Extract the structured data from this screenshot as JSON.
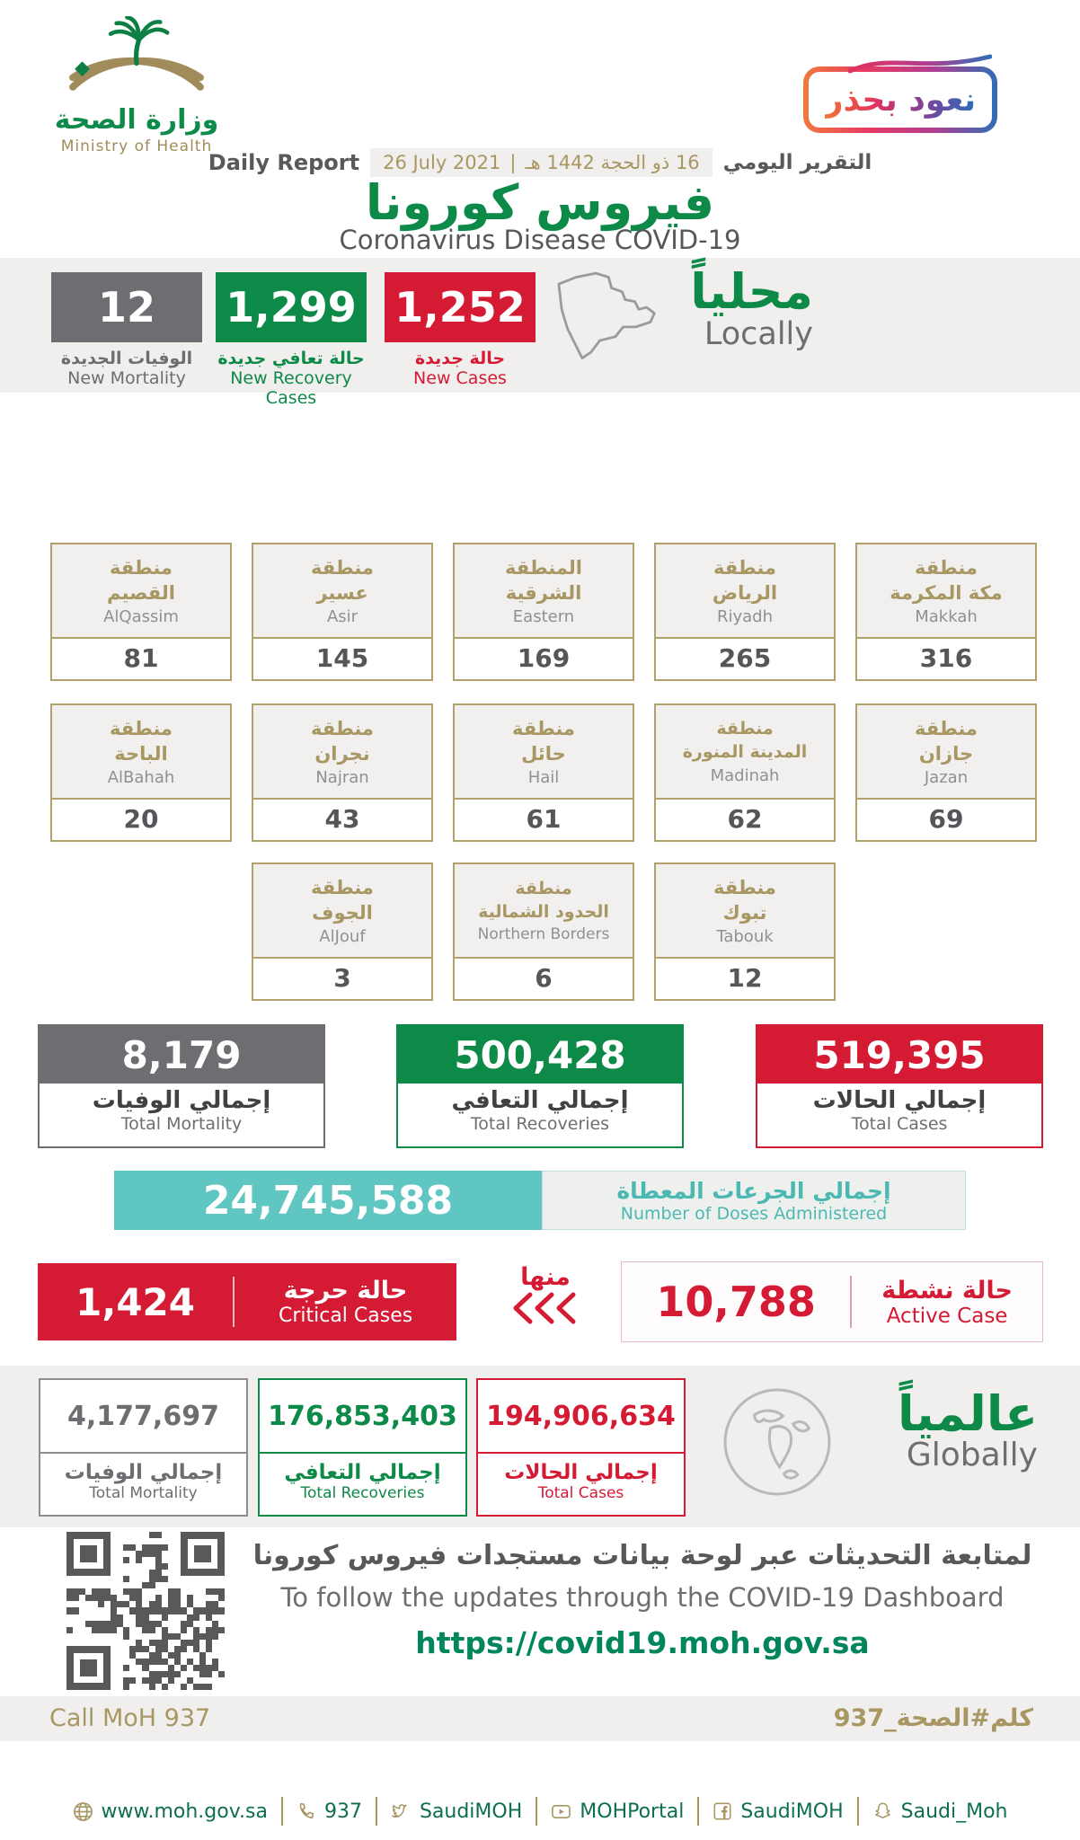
{
  "colors": {
    "green": "#0d8a48",
    "red": "#d51a34",
    "gray": "#6d6e71",
    "teal": "#5fc6c1",
    "gold": "#a89763",
    "band": "#f0efed",
    "dark": "#58595b",
    "url_green": "#00855c"
  },
  "header": {
    "logo": {
      "title_ar": "وزارة الصحة",
      "title_en": "Ministry of Health"
    },
    "badge_text": "نعود بحذر",
    "report": {
      "label_en": "Daily Report",
      "date_gregorian": "26 July 2021",
      "separator": "|",
      "date_hijri": "16 ذو الحجة 1442 هـ",
      "label_ar": "التقرير اليومي"
    },
    "title_ar": "فيروس كورونا",
    "title_en": "Coronavirus Disease COVID-19"
  },
  "locally": {
    "title_ar": "محلياً",
    "title_en": "Locally",
    "stats": [
      {
        "value": "12",
        "label_ar": "الوفيات الجديدة",
        "label_en": "New Mortality",
        "color": "#6d6e71"
      },
      {
        "value": "1,299",
        "label_ar": "حالة تعافي جديدة",
        "label_en": "New Recovery Cases",
        "color": "#0d8a48"
      },
      {
        "value": "1,252",
        "label_ar": "حالة جديدة",
        "label_en": "New Cases",
        "color": "#d51a34"
      }
    ]
  },
  "regions": {
    "cards": [
      {
        "ar1": "منطقة",
        "ar2": "القصيم",
        "en": "AlQassim",
        "value": "81"
      },
      {
        "ar1": "منطقة",
        "ar2": "عسير",
        "en": "Asir",
        "value": "145"
      },
      {
        "ar1": "المنطقة",
        "ar2": "الشرقية",
        "en": "Eastern",
        "value": "169"
      },
      {
        "ar1": "منطقة",
        "ar2": "الرياض",
        "en": "Riyadh",
        "value": "265"
      },
      {
        "ar1": "منطقة",
        "ar2": "مكة المكرمة",
        "en": "Makkah",
        "value": "316"
      },
      {
        "ar1": "منطقة",
        "ar2": "الباحة",
        "en": "AlBahah",
        "value": "20"
      },
      {
        "ar1": "منطقة",
        "ar2": "نجران",
        "en": "Najran",
        "value": "43"
      },
      {
        "ar1": "منطقة",
        "ar2": "حائل",
        "en": "Hail",
        "value": "61"
      },
      {
        "ar1": "منطقة",
        "ar2": "المدينة المنورة",
        "en": "Madinah",
        "value": "62"
      },
      {
        "ar1": "منطقة",
        "ar2": "جازان",
        "en": "Jazan",
        "value": "69"
      },
      {
        "ar1": "منطقة",
        "ar2": "الجوف",
        "en": "AlJouf",
        "value": "3"
      },
      {
        "ar1": "منطقة",
        "ar2": "الحدود الشمالية",
        "en": "Northern Borders",
        "value": "6"
      },
      {
        "ar1": "منطقة",
        "ar2": "تبوك",
        "en": "Tabouk",
        "value": "12"
      }
    ]
  },
  "totals": [
    {
      "value": "8,179",
      "label_ar": "إجمالي الوفيات",
      "label_en": "Total Mortality",
      "color": "#6d6e71"
    },
    {
      "value": "500,428",
      "label_ar": "إجمالي التعافي",
      "label_en": "Total Recoveries",
      "color": "#0d8a48"
    },
    {
      "value": "519,395",
      "label_ar": "إجمالي الحالات",
      "label_en": "Total Cases",
      "color": "#d51a34"
    }
  ],
  "doses": {
    "value": "24,745,588",
    "label_ar": "إجمالي الجرعات المعطاة",
    "label_en": "Number of Doses Administered"
  },
  "critical": {
    "value": "1,424",
    "label_ar": "حالة حرجة",
    "label_en": "Critical Cases"
  },
  "of_which": {
    "label_ar": "منها"
  },
  "active": {
    "value": "10,788",
    "label_ar": "حالة نشطة",
    "label_en": "Active Case"
  },
  "globally": {
    "title_ar": "عالمياً",
    "title_en": "Globally",
    "stats": [
      {
        "value": "4,177,697",
        "label_ar": "إجمالي الوفيات",
        "label_en": "Total Mortality",
        "color": "#6d6e71"
      },
      {
        "value": "176,853,403",
        "label_ar": "إجمالي التعافي",
        "label_en": "Total Recoveries",
        "color": "#0d8a48"
      },
      {
        "value": "194,906,634",
        "label_ar": "إجمالي الحالات",
        "label_en": "Total Cases",
        "color": "#d51a34"
      }
    ]
  },
  "dashboard": {
    "line_ar": "لمتابعة التحديثات عبر لوحة بيانات مستجدات فيروس كورونا",
    "line_en": "To follow the updates through the COVID-19 Dashboard",
    "url": "https://covid19.moh.gov.sa"
  },
  "hotline": {
    "left_en": "Call MoH 937",
    "right_ar": "كلم#الصحة_937"
  },
  "footer_links": [
    {
      "icon": "globe-icon",
      "text": "www.moh.gov.sa"
    },
    {
      "icon": "phone-icon",
      "text": "937"
    },
    {
      "icon": "twitter-icon",
      "text": "SaudiMOH"
    },
    {
      "icon": "youtube-icon",
      "text": "MOHPortal"
    },
    {
      "icon": "facebook-icon",
      "text": "SaudiMOH"
    },
    {
      "icon": "snapchat-icon",
      "text": "Saudi_Moh"
    }
  ]
}
